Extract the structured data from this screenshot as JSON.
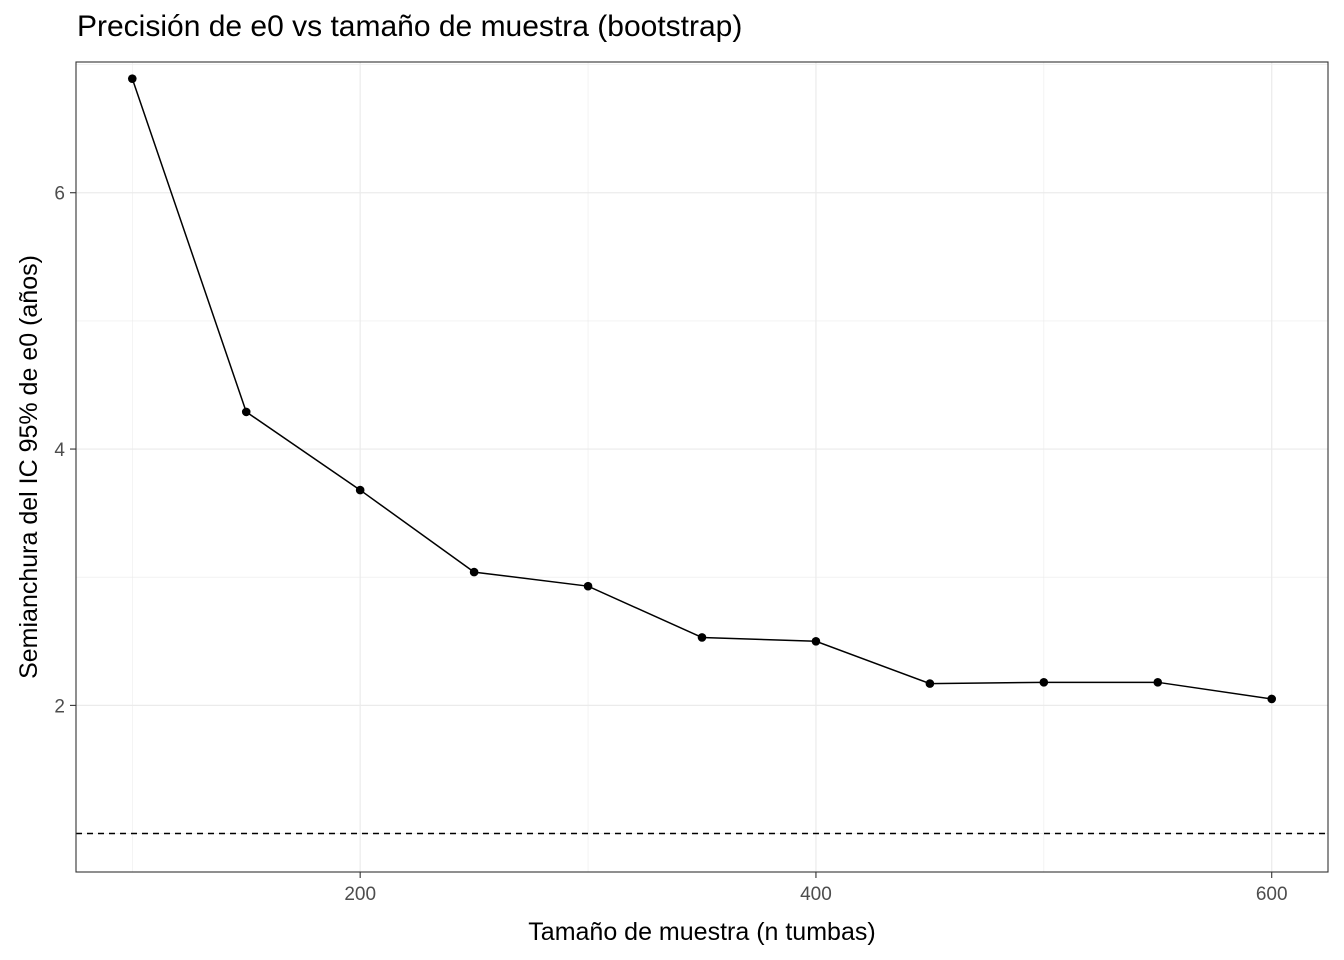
{
  "chart_data": {
    "type": "line",
    "title": "Precisión de e0 vs tamaño de muestra (bootstrap)",
    "xlabel": "Tamaño de muestra (n tumbas)",
    "ylabel": "Semianchura del IC 95% de e0 (años)",
    "x": [
      100,
      150,
      200,
      250,
      300,
      350,
      400,
      450,
      500,
      550,
      600
    ],
    "series": [
      {
        "values": [
          6.89,
          4.29,
          3.68,
          3.04,
          2.93,
          2.53,
          2.5,
          2.17,
          2.18,
          2.18,
          2.05
        ]
      }
    ],
    "reference_line": {
      "y": 1.0,
      "style": "dashed"
    },
    "xlim": [
      75.3,
      624.7
    ],
    "ylim": [
      0.7,
      7.02
    ],
    "xticks": [
      200,
      400,
      600
    ],
    "yticks": [
      2,
      4,
      6
    ],
    "grid": true,
    "colors": {
      "line": "#000000",
      "point": "#000000",
      "grid": "#ebebeb",
      "border": "#333333"
    }
  }
}
